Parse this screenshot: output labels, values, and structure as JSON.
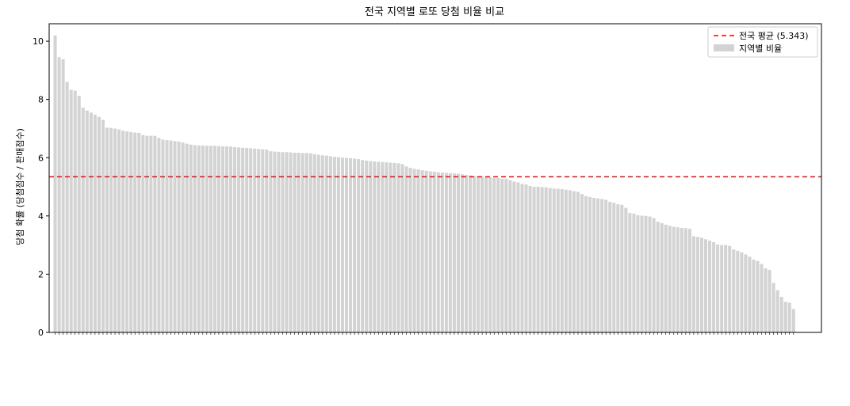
{
  "chart_data": {
    "type": "bar",
    "title": "전국 지역별 로또 당첨 비율 비교",
    "xlabel": "",
    "ylabel": "당첨 확률 (당첨점수 / 판매점수)",
    "ylim": [
      0,
      10.6
    ],
    "xlim": [
      -1.5,
      192.0
    ],
    "yticks": [
      0,
      2,
      4,
      6,
      8,
      10
    ],
    "grid": false,
    "legend_position": "top-right",
    "bar_color": "#d3d3d3",
    "average": {
      "label": "전국 평균 (5.343)",
      "value": 5.343,
      "color": "#ff0000",
      "style": "dashed"
    },
    "series": [
      {
        "name": "지역별 비율",
        "values": [
          10.2,
          9.45,
          9.38,
          8.6,
          8.33,
          8.3,
          8.12,
          7.72,
          7.62,
          7.55,
          7.48,
          7.4,
          7.3,
          7.03,
          7.02,
          7.0,
          6.97,
          6.93,
          6.9,
          6.88,
          6.86,
          6.85,
          6.78,
          6.75,
          6.75,
          6.75,
          6.68,
          6.62,
          6.6,
          6.59,
          6.57,
          6.55,
          6.52,
          6.48,
          6.45,
          6.43,
          6.42,
          6.42,
          6.41,
          6.41,
          6.41,
          6.4,
          6.39,
          6.39,
          6.38,
          6.36,
          6.35,
          6.34,
          6.33,
          6.32,
          6.31,
          6.3,
          6.29,
          6.28,
          6.22,
          6.21,
          6.2,
          6.19,
          6.19,
          6.18,
          6.17,
          6.17,
          6.16,
          6.16,
          6.15,
          6.12,
          6.1,
          6.08,
          6.07,
          6.05,
          6.03,
          6.02,
          6.0,
          5.99,
          5.98,
          5.97,
          5.95,
          5.92,
          5.9,
          5.88,
          5.87,
          5.86,
          5.85,
          5.84,
          5.83,
          5.82,
          5.81,
          5.78,
          5.7,
          5.65,
          5.62,
          5.6,
          5.57,
          5.55,
          5.53,
          5.52,
          5.5,
          5.49,
          5.48,
          5.47,
          5.46,
          5.45,
          5.43,
          5.41,
          5.39,
          5.37,
          5.36,
          5.35,
          5.34,
          5.33,
          5.3,
          5.3,
          5.28,
          5.27,
          5.23,
          5.18,
          5.15,
          5.1,
          5.08,
          5.03,
          5.0,
          5.0,
          4.99,
          4.98,
          4.96,
          4.94,
          4.93,
          4.92,
          4.9,
          4.88,
          4.85,
          4.83,
          4.75,
          4.68,
          4.65,
          4.62,
          4.6,
          4.58,
          4.55,
          4.48,
          4.45,
          4.4,
          4.38,
          4.28,
          4.1,
          4.08,
          4.02,
          4.01,
          4.0,
          3.98,
          3.92,
          3.8,
          3.75,
          3.7,
          3.66,
          3.63,
          3.61,
          3.59,
          3.58,
          3.56,
          3.3,
          3.28,
          3.25,
          3.2,
          3.15,
          3.1,
          3.02,
          3.0,
          3.0,
          2.97,
          2.85,
          2.8,
          2.75,
          2.68,
          2.6,
          2.5,
          2.45,
          2.35,
          2.2,
          2.15,
          1.7,
          1.45,
          1.22,
          1.05,
          1.02,
          0.8
        ]
      }
    ]
  }
}
